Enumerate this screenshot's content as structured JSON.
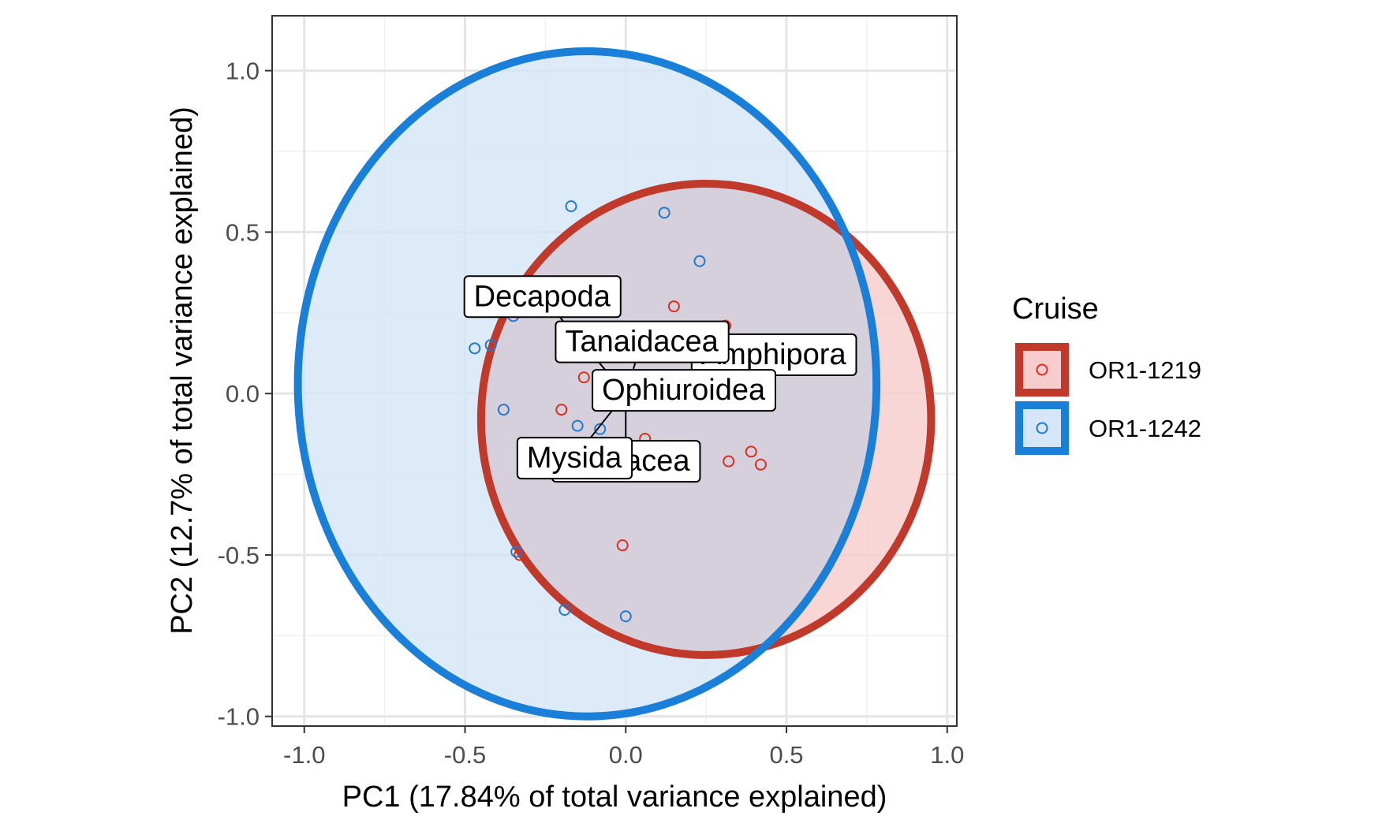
{
  "chart_data": {
    "type": "scatter",
    "title": "",
    "xlabel": "PC1 (17.84% of total variance explained)",
    "ylabel": "PC2 (12.7% of total variance explained)",
    "xlim": [
      -1.1,
      1.03
    ],
    "ylim": [
      -1.03,
      1.17
    ],
    "xticks": [
      -1.0,
      -0.5,
      0.0,
      0.5,
      1.0
    ],
    "xtick_labels": [
      "-1.0",
      "-0.5",
      "0.0",
      "0.5",
      "1.0"
    ],
    "yticks": [
      -1.0,
      -0.5,
      0.0,
      0.5,
      1.0
    ],
    "ytick_labels": [
      "-1.0",
      "-0.5",
      "0.0",
      "0.5",
      "1.0"
    ],
    "grid": true,
    "legend": {
      "title": "Cruise",
      "position": "right",
      "entries": [
        "OR1-1219",
        "OR1-1242"
      ]
    },
    "series": [
      {
        "name": "OR1-1219",
        "color": "#d7301f",
        "ellipse_stroke": "#c0392b",
        "ellipse_fill": "#f6cccc",
        "ellipse": {
          "cx": 0.25,
          "cy": -0.08,
          "rx": 0.7,
          "ry": 0.73
        },
        "points": [
          {
            "x": 0.15,
            "y": 0.27
          },
          {
            "x": 0.31,
            "y": 0.21
          },
          {
            "x": -0.13,
            "y": 0.05
          },
          {
            "x": -0.2,
            "y": -0.05
          },
          {
            "x": 0.06,
            "y": -0.14
          },
          {
            "x": 0.32,
            "y": -0.21
          },
          {
            "x": 0.39,
            "y": -0.18
          },
          {
            "x": 0.42,
            "y": -0.22
          },
          {
            "x": -0.01,
            "y": -0.47
          },
          {
            "x": -0.33,
            "y": -0.5
          }
        ]
      },
      {
        "name": "OR1-1242",
        "color": "#1f78d1",
        "ellipse_stroke": "#1a7fd9",
        "ellipse_fill": "#d4e6f7",
        "ellipse": {
          "cx": -0.12,
          "cy": 0.03,
          "rx": 0.9,
          "ry": 1.03
        },
        "points": [
          {
            "x": -0.17,
            "y": 0.58
          },
          {
            "x": 0.12,
            "y": 0.56
          },
          {
            "x": 0.23,
            "y": 0.41
          },
          {
            "x": -0.43,
            "y": 0.26
          },
          {
            "x": -0.35,
            "y": 0.24
          },
          {
            "x": -0.47,
            "y": 0.14
          },
          {
            "x": -0.42,
            "y": 0.15
          },
          {
            "x": -0.38,
            "y": -0.05
          },
          {
            "x": -0.15,
            "y": -0.1
          },
          {
            "x": -0.08,
            "y": -0.11
          },
          {
            "x": -0.34,
            "y": -0.49
          },
          {
            "x": -0.19,
            "y": -0.67
          },
          {
            "x": 0.0,
            "y": -0.69
          }
        ]
      }
    ],
    "loadings": [
      {
        "label": "Decapoda",
        "x": -0.26,
        "y": 0.3
      },
      {
        "label": "Amphipora",
        "x": 0.46,
        "y": 0.12
      },
      {
        "label": "Tanaidacea",
        "x": 0.05,
        "y": 0.16
      },
      {
        "label": "Ophiuroidea",
        "x": 0.18,
        "y": 0.01
      },
      {
        "label": "Cumacea",
        "x": 0.0,
        "y": -0.21
      },
      {
        "label": "Mysida",
        "x": -0.16,
        "y": -0.2
      }
    ],
    "loadings_origin": {
      "x": 0.0,
      "y": 0.0
    }
  }
}
